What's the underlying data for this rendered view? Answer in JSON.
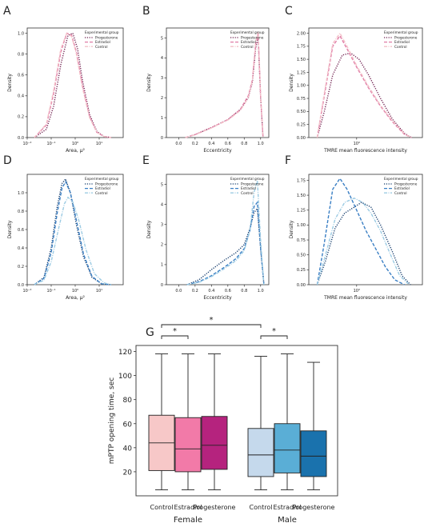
{
  "figure": {
    "panel_letters": [
      "A",
      "B",
      "C",
      "D",
      "E",
      "F",
      "G"
    ]
  },
  "colors": {
    "female_progesterone": "#6e1e4e",
    "female_estradiol": "#e07ca6",
    "female_control": "#f3c1c8",
    "male_progesterone": "#123a6b",
    "male_estradiol": "#3a7fc4",
    "male_control": "#9ccbe3",
    "box_female_control": "#f7c8c8",
    "box_female_estradiol": "#f27aa8",
    "box_female_progesterone": "#b5237e",
    "box_male_control": "#c5d9ec",
    "box_male_estradiol": "#5aaed6",
    "box_male_progesterone": "#1a72ad"
  },
  "chart_data": [
    {
      "panel": "A",
      "type": "line",
      "xlabel": "Area, μ²",
      "ylabel": "Density",
      "xscale": "log",
      "xlim": [
        -2,
        2
      ],
      "xticks": [
        -2,
        -1,
        0,
        1
      ],
      "xtick_labels": [
        "10⁻²",
        "10⁻¹",
        "10⁰",
        "10¹"
      ],
      "ylim": [
        0,
        1.05
      ],
      "yticks": [
        0,
        0.2,
        0.4,
        0.6,
        0.8,
        1.0
      ],
      "ytick_labels": [
        "0.0",
        "0.2",
        "0.4",
        "0.6",
        "0.8",
        "1.0"
      ],
      "legend": {
        "title": "Experimental group",
        "position": "top-right"
      },
      "series": [
        {
          "name": "Progesterone",
          "style": "dotted",
          "colorKey": "female_progesterone",
          "x": [
            -1.7,
            -1.2,
            -0.9,
            -0.6,
            -0.3,
            -0.1,
            0.1,
            0.3,
            0.6,
            0.9,
            1.2,
            1.5
          ],
          "y": [
            0.0,
            0.08,
            0.3,
            0.7,
            0.98,
            1.0,
            0.85,
            0.55,
            0.22,
            0.06,
            0.01,
            0.0
          ]
        },
        {
          "name": "Estradiol",
          "style": "dashed",
          "colorKey": "female_estradiol",
          "x": [
            -1.7,
            -1.2,
            -0.9,
            -0.6,
            -0.35,
            -0.15,
            0.05,
            0.3,
            0.6,
            0.9,
            1.2,
            1.5
          ],
          "y": [
            0.0,
            0.12,
            0.42,
            0.82,
            1.0,
            0.98,
            0.82,
            0.5,
            0.2,
            0.05,
            0.01,
            0.0
          ]
        },
        {
          "name": "Control",
          "style": "dashdot",
          "colorKey": "female_control",
          "x": [
            -1.7,
            -1.2,
            -0.9,
            -0.6,
            -0.35,
            -0.15,
            0.05,
            0.3,
            0.6,
            0.9,
            1.2,
            1.5
          ],
          "y": [
            0.0,
            0.13,
            0.45,
            0.85,
            1.0,
            0.97,
            0.8,
            0.48,
            0.19,
            0.05,
            0.01,
            0.0
          ]
        }
      ]
    },
    {
      "panel": "B",
      "type": "line",
      "xlabel": "Eccentricity",
      "ylabel": "Density",
      "xlim": [
        -0.15,
        1.1
      ],
      "xticks": [
        0.0,
        0.2,
        0.4,
        0.6,
        0.8,
        1.0
      ],
      "xtick_labels": [
        "0.0",
        "0.2",
        "0.4",
        "0.6",
        "0.8",
        "1.0"
      ],
      "ylim": [
        0,
        5.5
      ],
      "yticks": [
        0,
        1,
        2,
        3,
        4,
        5
      ],
      "ytick_labels": [
        "0",
        "1",
        "2",
        "3",
        "4",
        "5"
      ],
      "legend": {
        "title": "Experimental group",
        "position": "top-right"
      },
      "series": [
        {
          "name": "Progesterone",
          "style": "dotted",
          "colorKey": "female_progesterone",
          "x": [
            0.08,
            0.2,
            0.4,
            0.6,
            0.75,
            0.85,
            0.9,
            0.94,
            0.97,
            1.0,
            1.03
          ],
          "y": [
            0.0,
            0.15,
            0.5,
            0.9,
            1.4,
            2.0,
            2.8,
            4.5,
            5.0,
            2.0,
            0.0
          ]
        },
        {
          "name": "Estradiol",
          "style": "dashed",
          "colorKey": "female_estradiol",
          "x": [
            0.08,
            0.2,
            0.4,
            0.6,
            0.75,
            0.85,
            0.9,
            0.94,
            0.97,
            1.0,
            1.03
          ],
          "y": [
            0.0,
            0.15,
            0.5,
            0.9,
            1.4,
            2.1,
            2.9,
            4.7,
            5.2,
            2.0,
            0.0
          ]
        },
        {
          "name": "Control",
          "style": "dashdot",
          "colorKey": "female_control",
          "x": [
            0.08,
            0.2,
            0.4,
            0.6,
            0.75,
            0.85,
            0.9,
            0.94,
            0.97,
            1.0,
            1.03
          ],
          "y": [
            0.0,
            0.14,
            0.48,
            0.88,
            1.35,
            2.0,
            2.9,
            4.8,
            5.3,
            2.1,
            0.0
          ]
        }
      ]
    },
    {
      "panel": "C",
      "type": "line",
      "xlabel": "TMRE mean fluorescence intensity",
      "ylabel": "Density",
      "xscale": "log",
      "xlim": [
        -0.4,
        0.55
      ],
      "xticks": [
        0
      ],
      "xtick_labels": [
        "10⁰"
      ],
      "ylim": [
        0,
        2.1
      ],
      "yticks": [
        0,
        0.25,
        0.5,
        0.75,
        1.0,
        1.25,
        1.5,
        1.75,
        2.0
      ],
      "ytick_labels": [
        "0.00",
        "0.25",
        "0.50",
        "0.75",
        "1.00",
        "1.25",
        "1.50",
        "1.75",
        "2.00"
      ],
      "legend": {
        "title": "Experimental group",
        "position": "top-right"
      },
      "series": [
        {
          "name": "Progesterone",
          "style": "dotted",
          "colorKey": "female_progesterone",
          "x": [
            -0.33,
            -0.27,
            -0.2,
            -0.12,
            -0.05,
            0.02,
            0.1,
            0.2,
            0.3,
            0.4,
            0.46
          ],
          "y": [
            0.0,
            0.5,
            1.2,
            1.58,
            1.62,
            1.5,
            1.2,
            0.75,
            0.35,
            0.08,
            0.0
          ]
        },
        {
          "name": "Estradiol",
          "style": "dashed",
          "colorKey": "female_estradiol",
          "x": [
            -0.33,
            -0.27,
            -0.2,
            -0.14,
            -0.08,
            0.0,
            0.1,
            0.2,
            0.3,
            0.4,
            0.46
          ],
          "y": [
            0.0,
            0.8,
            1.75,
            1.95,
            1.7,
            1.35,
            0.95,
            0.6,
            0.3,
            0.06,
            0.0
          ]
        },
        {
          "name": "Control",
          "style": "dashdot",
          "colorKey": "female_control",
          "x": [
            -0.33,
            -0.27,
            -0.2,
            -0.14,
            -0.08,
            0.0,
            0.1,
            0.2,
            0.3,
            0.4,
            0.46
          ],
          "y": [
            0.0,
            0.85,
            1.8,
            2.0,
            1.75,
            1.38,
            0.98,
            0.62,
            0.32,
            0.07,
            0.0
          ]
        }
      ]
    },
    {
      "panel": "D",
      "type": "line",
      "xlabel": "Area, μ²",
      "ylabel": "Density",
      "xscale": "log",
      "xlim": [
        -2,
        2
      ],
      "xticks": [
        -2,
        -1,
        0,
        1
      ],
      "xtick_labels": [
        "10⁻²",
        "10⁻¹",
        "10⁰",
        "10¹"
      ],
      "ylim": [
        0,
        1.2
      ],
      "yticks": [
        0,
        0.2,
        0.4,
        0.6,
        0.8,
        1.0
      ],
      "ytick_labels": [
        "0.0",
        "0.2",
        "0.4",
        "0.6",
        "0.8",
        "1.0"
      ],
      "legend": {
        "title": "Experimental group",
        "position": "top-right"
      },
      "series": [
        {
          "name": "Progesterone",
          "style": "dotted",
          "colorKey": "male_progesterone",
          "x": [
            -1.7,
            -1.3,
            -1.0,
            -0.75,
            -0.55,
            -0.4,
            -0.2,
            0.05,
            0.35,
            0.7,
            1.1,
            1.5
          ],
          "y": [
            0.0,
            0.08,
            0.4,
            0.85,
            1.1,
            1.15,
            1.0,
            0.65,
            0.3,
            0.08,
            0.01,
            0.0
          ]
        },
        {
          "name": "Estradiol",
          "style": "dashed",
          "colorKey": "male_estradiol",
          "x": [
            -1.7,
            -1.3,
            -1.0,
            -0.75,
            -0.55,
            -0.4,
            -0.2,
            0.05,
            0.35,
            0.7,
            1.1,
            1.5
          ],
          "y": [
            0.0,
            0.07,
            0.35,
            0.78,
            1.05,
            1.12,
            1.0,
            0.7,
            0.33,
            0.09,
            0.01,
            0.0
          ]
        },
        {
          "name": "Control",
          "style": "dashdot",
          "colorKey": "male_control",
          "x": [
            -1.7,
            -1.3,
            -1.0,
            -0.7,
            -0.45,
            -0.3,
            -0.1,
            0.15,
            0.45,
            0.8,
            1.2,
            1.5
          ],
          "y": [
            0.0,
            0.05,
            0.25,
            0.6,
            0.88,
            0.95,
            0.9,
            0.7,
            0.38,
            0.12,
            0.02,
            0.0
          ]
        }
      ]
    },
    {
      "panel": "E",
      "type": "line",
      "xlabel": "Eccentricity",
      "ylabel": "Density",
      "xlim": [
        -0.15,
        1.1
      ],
      "xticks": [
        0.0,
        0.2,
        0.4,
        0.6,
        0.8,
        1.0
      ],
      "xtick_labels": [
        "0.0",
        "0.2",
        "0.4",
        "0.6",
        "0.8",
        "1.0"
      ],
      "ylim": [
        0,
        5.5
      ],
      "yticks": [
        0,
        1,
        2,
        3,
        4,
        5
      ],
      "ytick_labels": [
        "0",
        "1",
        "2",
        "3",
        "4",
        "5"
      ],
      "legend": {
        "title": "Experimental group",
        "position": "top-right"
      },
      "series": [
        {
          "name": "Progesterone",
          "style": "dotted",
          "colorKey": "male_progesterone",
          "x": [
            0.1,
            0.25,
            0.4,
            0.55,
            0.7,
            0.8,
            0.87,
            0.92,
            0.96,
            1.0,
            1.04
          ],
          "y": [
            0.0,
            0.25,
            0.75,
            1.2,
            1.6,
            2.0,
            2.8,
            3.6,
            3.8,
            1.8,
            0.0
          ]
        },
        {
          "name": "Estradiol",
          "style": "dashed",
          "colorKey": "male_estradiol",
          "x": [
            0.1,
            0.25,
            0.4,
            0.55,
            0.7,
            0.8,
            0.87,
            0.92,
            0.96,
            1.0,
            1.04
          ],
          "y": [
            0.0,
            0.15,
            0.45,
            0.85,
            1.3,
            1.8,
            2.7,
            3.9,
            4.1,
            1.8,
            0.0
          ]
        },
        {
          "name": "Control",
          "style": "dashdot",
          "colorKey": "male_control",
          "x": [
            0.1,
            0.25,
            0.4,
            0.55,
            0.7,
            0.8,
            0.87,
            0.92,
            0.96,
            1.0,
            1.04
          ],
          "y": [
            0.0,
            0.12,
            0.4,
            0.78,
            1.2,
            1.7,
            2.7,
            4.6,
            5.2,
            2.2,
            0.0
          ]
        }
      ]
    },
    {
      "panel": "F",
      "type": "line",
      "xlabel": "TMRE mean fluorescence intensity",
      "ylabel": "Density",
      "xscale": "log",
      "xlim": [
        -0.4,
        0.55
      ],
      "xticks": [
        0
      ],
      "xtick_labels": [
        "10⁰"
      ],
      "ylim": [
        0,
        1.85
      ],
      "yticks": [
        0,
        0.25,
        0.5,
        0.75,
        1.0,
        1.25,
        1.5,
        1.75
      ],
      "ytick_labels": [
        "0.00",
        "0.25",
        "0.50",
        "0.75",
        "1.00",
        "1.25",
        "1.50",
        "1.75"
      ],
      "legend": {
        "title": "Experimental group",
        "position": "top-right"
      },
      "series": [
        {
          "name": "Progesterone",
          "style": "dotted",
          "colorKey": "male_progesterone",
          "x": [
            -0.33,
            -0.26,
            -0.18,
            -0.1,
            -0.02,
            0.04,
            0.12,
            0.2,
            0.3,
            0.38,
            0.45
          ],
          "y": [
            0.0,
            0.4,
            0.95,
            1.2,
            1.3,
            1.38,
            1.3,
            1.0,
            0.55,
            0.15,
            0.0
          ]
        },
        {
          "name": "Estradiol",
          "style": "dashed",
          "colorKey": "male_estradiol",
          "x": [
            -0.33,
            -0.27,
            -0.2,
            -0.14,
            -0.08,
            0.0,
            0.08,
            0.16,
            0.24,
            0.32,
            0.4
          ],
          "y": [
            0.0,
            0.7,
            1.6,
            1.78,
            1.6,
            1.25,
            0.9,
            0.6,
            0.3,
            0.08,
            0.0
          ]
        },
        {
          "name": "Control",
          "style": "dashdot",
          "colorKey": "male_control",
          "x": [
            -0.33,
            -0.26,
            -0.18,
            -0.1,
            -0.02,
            0.05,
            0.12,
            0.2,
            0.28,
            0.36,
            0.44
          ],
          "y": [
            0.0,
            0.5,
            1.1,
            1.38,
            1.45,
            1.38,
            1.2,
            0.9,
            0.52,
            0.15,
            0.0
          ]
        }
      ]
    },
    {
      "panel": "G",
      "type": "box",
      "ylabel": "mPTP opening time, sec",
      "ylim": [
        0,
        125
      ],
      "yticks": [
        20,
        40,
        60,
        80,
        100,
        120
      ],
      "ytick_labels": [
        "20",
        "40",
        "60",
        "80",
        "100",
        "120"
      ],
      "groups": [
        "Female",
        "Male"
      ],
      "boxes": [
        {
          "group": "Female",
          "label": "Control",
          "colorKey": "box_female_control",
          "whisker_low": 5,
          "q1": 21,
          "median": 44,
          "q3": 67,
          "whisker_high": 118
        },
        {
          "group": "Female",
          "label": "Estradiol",
          "colorKey": "box_female_estradiol",
          "whisker_low": 5,
          "q1": 20,
          "median": 39,
          "q3": 65,
          "whisker_high": 118
        },
        {
          "group": "Female",
          "label": "Progesterone",
          "colorKey": "box_female_progesterone",
          "whisker_low": 5,
          "q1": 22,
          "median": 42,
          "q3": 66,
          "whisker_high": 118
        },
        {
          "group": "Male",
          "label": "Control",
          "colorKey": "box_male_control",
          "whisker_low": 5,
          "q1": 16,
          "median": 34,
          "q3": 56,
          "whisker_high": 116
        },
        {
          "group": "Male",
          "label": "Estradiol",
          "colorKey": "box_male_estradiol",
          "whisker_low": 5,
          "q1": 19,
          "median": 38,
          "q3": 60,
          "whisker_high": 118
        },
        {
          "group": "Male",
          "label": "Progesterone",
          "colorKey": "box_male_progesterone",
          "whisker_low": 5,
          "q1": 16,
          "median": 33,
          "q3": 54,
          "whisker_high": 111
        }
      ],
      "significance": [
        {
          "from": 0,
          "to": 3,
          "label": "*"
        },
        {
          "from": 0,
          "to": 1,
          "label": "*"
        },
        {
          "from": 3,
          "to": 4,
          "label": "*"
        }
      ]
    }
  ]
}
